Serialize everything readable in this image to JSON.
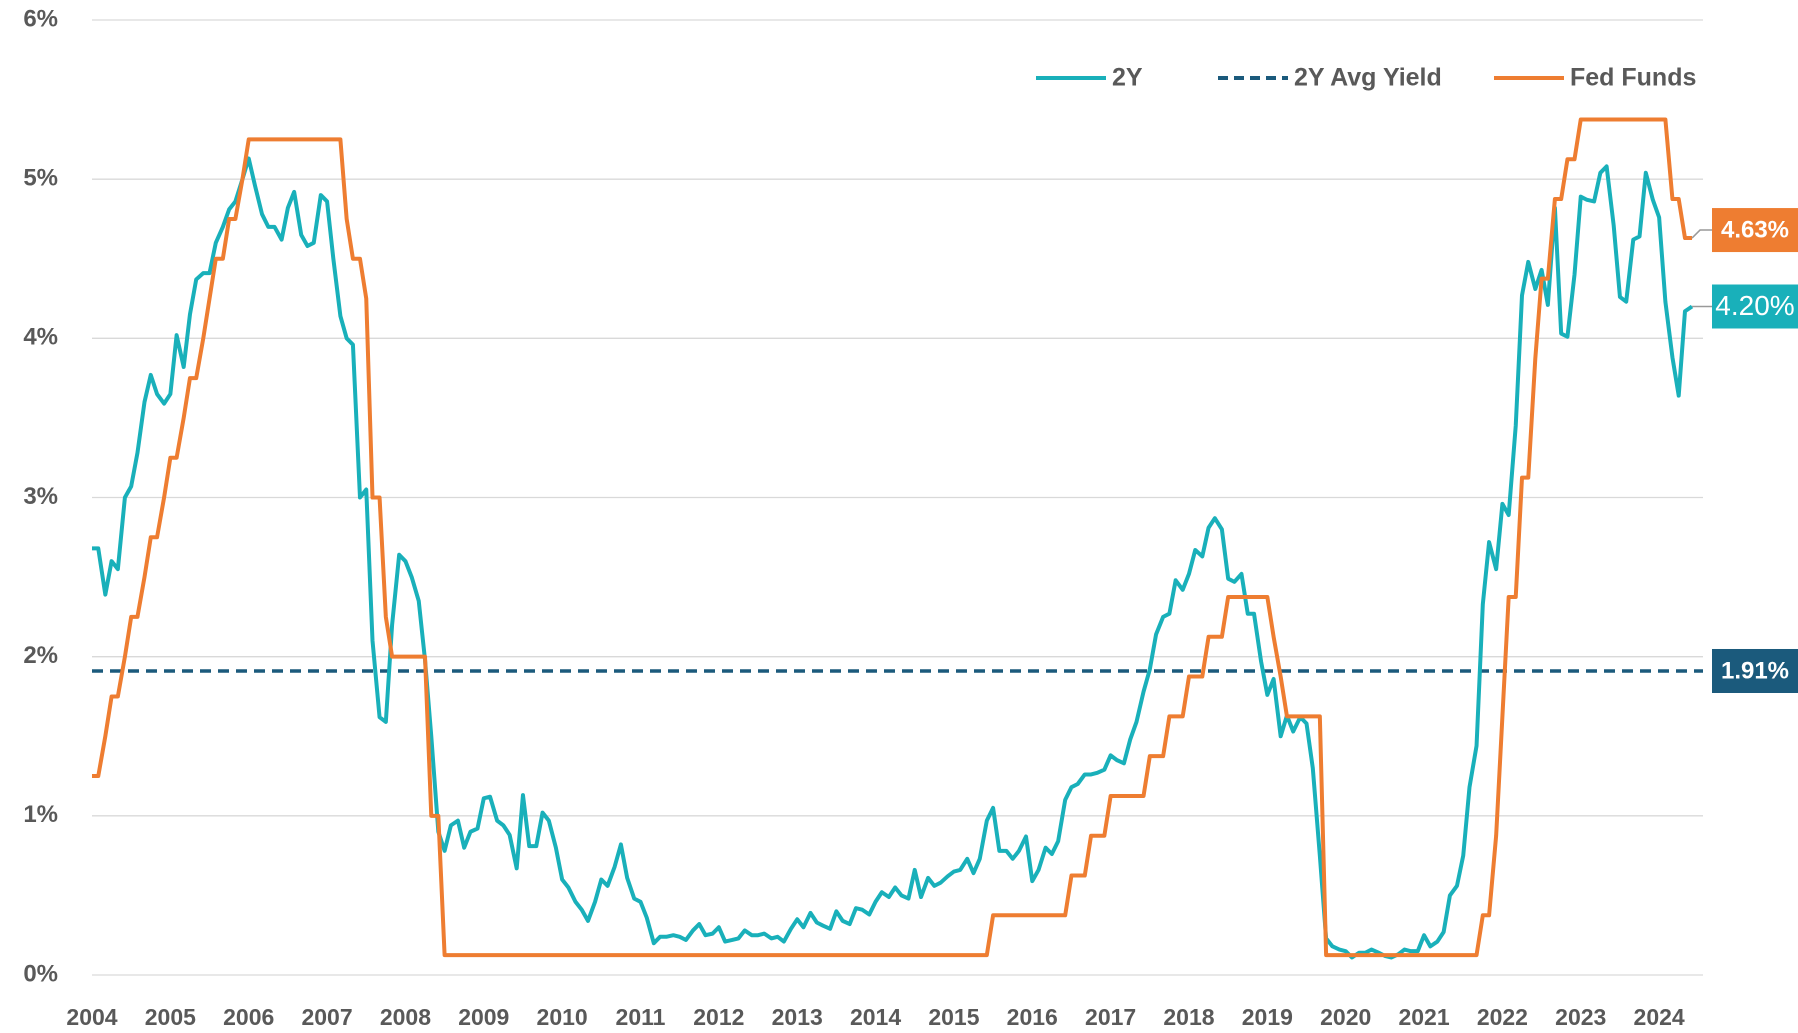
{
  "chart_data": {
    "type": "line",
    "x": [
      2004,
      2004.08,
      2004.17,
      2004.25,
      2004.33,
      2004.42,
      2004.5,
      2004.58,
      2004.67,
      2004.75,
      2004.83,
      2004.92,
      2005,
      2005.08,
      2005.17,
      2005.25,
      2005.33,
      2005.42,
      2005.5,
      2005.58,
      2005.67,
      2005.75,
      2005.83,
      2005.92,
      2006,
      2006.08,
      2006.17,
      2006.25,
      2006.33,
      2006.42,
      2006.5,
      2006.58,
      2006.67,
      2006.75,
      2006.83,
      2006.92,
      2007,
      2007.08,
      2007.17,
      2007.25,
      2007.33,
      2007.42,
      2007.5,
      2007.58,
      2007.67,
      2007.75,
      2007.83,
      2007.92,
      2008,
      2008.08,
      2008.17,
      2008.25,
      2008.33,
      2008.42,
      2008.5,
      2008.58,
      2008.67,
      2008.75,
      2008.83,
      2008.92,
      2009,
      2009.08,
      2009.17,
      2009.25,
      2009.33,
      2009.42,
      2009.5,
      2009.58,
      2009.67,
      2009.75,
      2009.83,
      2009.92,
      2010,
      2010.08,
      2010.17,
      2010.25,
      2010.33,
      2010.42,
      2010.5,
      2010.58,
      2010.67,
      2010.75,
      2010.83,
      2010.92,
      2011,
      2011.08,
      2011.17,
      2011.25,
      2011.33,
      2011.42,
      2011.5,
      2011.58,
      2011.67,
      2011.75,
      2011.83,
      2011.92,
      2012,
      2012.08,
      2012.17,
      2012.25,
      2012.33,
      2012.42,
      2012.5,
      2012.58,
      2012.67,
      2012.75,
      2012.83,
      2012.92,
      2013,
      2013.08,
      2013.17,
      2013.25,
      2013.33,
      2013.42,
      2013.5,
      2013.58,
      2013.67,
      2013.75,
      2013.83,
      2013.92,
      2014,
      2014.08,
      2014.17,
      2014.25,
      2014.33,
      2014.42,
      2014.5,
      2014.58,
      2014.67,
      2014.75,
      2014.83,
      2014.92,
      2015,
      2015.08,
      2015.17,
      2015.25,
      2015.33,
      2015.42,
      2015.5,
      2015.58,
      2015.67,
      2015.75,
      2015.83,
      2015.92,
      2016,
      2016.08,
      2016.17,
      2016.25,
      2016.33,
      2016.42,
      2016.5,
      2016.58,
      2016.67,
      2016.75,
      2016.83,
      2016.92,
      2017,
      2017.08,
      2017.17,
      2017.25,
      2017.33,
      2017.42,
      2017.5,
      2017.58,
      2017.67,
      2017.75,
      2017.83,
      2017.92,
      2018,
      2018.08,
      2018.17,
      2018.25,
      2018.33,
      2018.42,
      2018.5,
      2018.58,
      2018.67,
      2018.75,
      2018.83,
      2018.92,
      2019,
      2019.08,
      2019.17,
      2019.25,
      2019.33,
      2019.42,
      2019.5,
      2019.58,
      2019.67,
      2019.75,
      2019.83,
      2019.92,
      2020,
      2020.08,
      2020.17,
      2020.25,
      2020.33,
      2020.42,
      2020.5,
      2020.58,
      2020.67,
      2020.75,
      2020.83,
      2020.92,
      2021,
      2021.08,
      2021.17,
      2021.25,
      2021.33,
      2021.42,
      2021.5,
      2021.58,
      2021.67,
      2021.75,
      2021.83,
      2021.92,
      2022,
      2022.08,
      2022.17,
      2022.25,
      2022.33,
      2022.42,
      2022.5,
      2022.58,
      2022.67,
      2022.75,
      2022.83,
      2022.92,
      2023,
      2023.08,
      2023.17,
      2023.25,
      2023.33,
      2023.42,
      2023.5,
      2023.58,
      2023.67,
      2023.75,
      2023.83,
      2023.92,
      2024,
      2024.08,
      2024.17,
      2024.25,
      2024.33,
      2024.42
    ],
    "series": [
      {
        "name": "2Y",
        "color": "#19b0ba",
        "end_label": "4.20%",
        "values": [
          2.68,
          2.68,
          2.39,
          2.6,
          2.55,
          3.0,
          3.07,
          3.28,
          3.6,
          3.77,
          3.65,
          3.59,
          3.65,
          4.02,
          3.82,
          4.15,
          4.37,
          4.41,
          4.41,
          4.6,
          4.7,
          4.81,
          4.86,
          5.0,
          5.13,
          4.96,
          4.78,
          4.7,
          4.7,
          4.62,
          4.82,
          4.92,
          4.65,
          4.58,
          4.6,
          4.9,
          4.86,
          4.5,
          4.14,
          4.0,
          3.96,
          3.0,
          3.05,
          2.1,
          1.62,
          1.59,
          2.2,
          2.64,
          2.6,
          2.5,
          2.35,
          1.98,
          1.5,
          0.9,
          0.78,
          0.94,
          0.97,
          0.8,
          0.9,
          0.92,
          1.11,
          1.12,
          0.97,
          0.94,
          0.88,
          0.67,
          1.13,
          0.81,
          0.81,
          1.02,
          0.97,
          0.8,
          0.6,
          0.55,
          0.46,
          0.41,
          0.34,
          0.46,
          0.6,
          0.56,
          0.68,
          0.82,
          0.61,
          0.48,
          0.46,
          0.36,
          0.2,
          0.24,
          0.24,
          0.25,
          0.24,
          0.22,
          0.28,
          0.32,
          0.25,
          0.26,
          0.3,
          0.21,
          0.22,
          0.23,
          0.28,
          0.25,
          0.25,
          0.26,
          0.23,
          0.24,
          0.21,
          0.29,
          0.35,
          0.3,
          0.39,
          0.33,
          0.31,
          0.29,
          0.4,
          0.34,
          0.32,
          0.42,
          0.41,
          0.38,
          0.46,
          0.52,
          0.49,
          0.55,
          0.5,
          0.48,
          0.66,
          0.49,
          0.61,
          0.56,
          0.58,
          0.62,
          0.65,
          0.66,
          0.73,
          0.64,
          0.73,
          0.97,
          1.05,
          0.78,
          0.78,
          0.73,
          0.78,
          0.87,
          0.59,
          0.66,
          0.8,
          0.76,
          0.84,
          1.1,
          1.18,
          1.2,
          1.26,
          1.26,
          1.27,
          1.29,
          1.38,
          1.35,
          1.33,
          1.48,
          1.59,
          1.78,
          1.92,
          2.14,
          2.25,
          2.27,
          2.48,
          2.42,
          2.52,
          2.67,
          2.63,
          2.81,
          2.87,
          2.8,
          2.49,
          2.47,
          2.52,
          2.27,
          2.27,
          1.97,
          1.76,
          1.86,
          1.5,
          1.63,
          1.53,
          1.62,
          1.58,
          1.3,
          0.75,
          0.23,
          0.18,
          0.16,
          0.15,
          0.11,
          0.14,
          0.14,
          0.16,
          0.14,
          0.12,
          0.11,
          0.13,
          0.16,
          0.15,
          0.15,
          0.25,
          0.18,
          0.21,
          0.27,
          0.5,
          0.56,
          0.75,
          1.18,
          1.44,
          2.33,
          2.72,
          2.55,
          2.96,
          2.89,
          3.45,
          4.27,
          4.48,
          4.31,
          4.43,
          4.21,
          4.82,
          4.03,
          4.01,
          4.4,
          4.89,
          4.87,
          4.86,
          5.04,
          5.08,
          4.71,
          4.26,
          4.23,
          4.62,
          4.64,
          5.04,
          4.87,
          4.76,
          4.23,
          3.88,
          3.64,
          4.17,
          4.2
        ]
      },
      {
        "name": "Fed Funds",
        "color": "#ee7d31",
        "end_label": "4.63%",
        "values": [
          1.25,
          1.25,
          1.5,
          1.75,
          1.75,
          2.0,
          2.25,
          2.25,
          2.5,
          2.75,
          2.75,
          3.0,
          3.25,
          3.25,
          3.5,
          3.75,
          3.75,
          4.0,
          4.25,
          4.5,
          4.5,
          4.75,
          4.75,
          5.0,
          5.25,
          5.25,
          5.25,
          5.25,
          5.25,
          5.25,
          5.25,
          5.25,
          5.25,
          5.25,
          5.25,
          5.25,
          5.25,
          5.25,
          5.25,
          4.75,
          4.5,
          4.5,
          4.25,
          3.0,
          3.0,
          2.25,
          2.0,
          2.0,
          2.0,
          2.0,
          2.0,
          2.0,
          1.0,
          1.0,
          0.125,
          0.125,
          0.125,
          0.125,
          0.125,
          0.125,
          0.125,
          0.125,
          0.125,
          0.125,
          0.125,
          0.125,
          0.125,
          0.125,
          0.125,
          0.125,
          0.125,
          0.125,
          0.125,
          0.125,
          0.125,
          0.125,
          0.125,
          0.125,
          0.125,
          0.125,
          0.125,
          0.125,
          0.125,
          0.125,
          0.125,
          0.125,
          0.125,
          0.125,
          0.125,
          0.125,
          0.125,
          0.125,
          0.125,
          0.125,
          0.125,
          0.125,
          0.125,
          0.125,
          0.125,
          0.125,
          0.125,
          0.125,
          0.125,
          0.125,
          0.125,
          0.125,
          0.125,
          0.125,
          0.125,
          0.125,
          0.125,
          0.125,
          0.125,
          0.125,
          0.125,
          0.125,
          0.125,
          0.125,
          0.125,
          0.125,
          0.125,
          0.125,
          0.125,
          0.125,
          0.125,
          0.125,
          0.125,
          0.125,
          0.125,
          0.125,
          0.125,
          0.125,
          0.125,
          0.125,
          0.125,
          0.125,
          0.125,
          0.125,
          0.375,
          0.375,
          0.375,
          0.375,
          0.375,
          0.375,
          0.375,
          0.375,
          0.375,
          0.375,
          0.375,
          0.375,
          0.625,
          0.625,
          0.625,
          0.875,
          0.875,
          0.875,
          1.125,
          1.125,
          1.125,
          1.125,
          1.125,
          1.125,
          1.375,
          1.375,
          1.375,
          1.625,
          1.625,
          1.625,
          1.875,
          1.875,
          1.875,
          2.125,
          2.125,
          2.125,
          2.375,
          2.375,
          2.375,
          2.375,
          2.375,
          2.375,
          2.375,
          2.125,
          1.875,
          1.625,
          1.625,
          1.625,
          1.625,
          1.625,
          1.625,
          0.125,
          0.125,
          0.125,
          0.125,
          0.125,
          0.125,
          0.125,
          0.125,
          0.125,
          0.125,
          0.125,
          0.125,
          0.125,
          0.125,
          0.125,
          0.125,
          0.125,
          0.125,
          0.125,
          0.125,
          0.125,
          0.125,
          0.125,
          0.125,
          0.375,
          0.375,
          0.875,
          1.625,
          2.375,
          2.375,
          3.125,
          3.125,
          3.875,
          4.375,
          4.375,
          4.875,
          4.875,
          5.125,
          5.125,
          5.375,
          5.375,
          5.375,
          5.375,
          5.375,
          5.375,
          5.375,
          5.375,
          5.375,
          5.375,
          5.375,
          5.375,
          5.375,
          5.375,
          4.875,
          4.875,
          4.63,
          4.63
        ]
      }
    ],
    "reference_lines": [
      {
        "name": "2Y Avg Yield",
        "value": 1.91,
        "value_label": "1.91%",
        "color": "#1b5a7c"
      }
    ],
    "xlim": [
      2004,
      2024.56
    ],
    "xticks": [
      2004,
      2005,
      2006,
      2007,
      2008,
      2009,
      2010,
      2011,
      2012,
      2013,
      2014,
      2015,
      2016,
      2017,
      2018,
      2019,
      2020,
      2021,
      2022,
      2023,
      2024
    ],
    "ylim": [
      0,
      6
    ],
    "yticks": [
      {
        "value": 0,
        "label": "0%"
      },
      {
        "value": 1,
        "label": "1%"
      },
      {
        "value": 2,
        "label": "2%"
      },
      {
        "value": 3,
        "label": "3%"
      },
      {
        "value": 4,
        "label": "4%"
      },
      {
        "value": 5,
        "label": "5%"
      },
      {
        "value": 6,
        "label": "6%"
      }
    ],
    "grid": true,
    "legend": "top-right"
  }
}
